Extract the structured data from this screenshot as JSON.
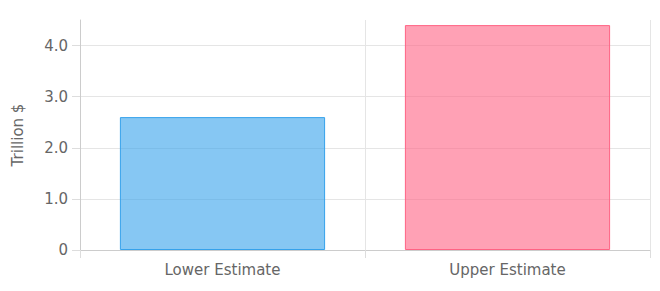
{
  "chart_data": {
    "type": "bar",
    "y_label": "Trillion $",
    "categories": [
      "Lower Estimate",
      "Upper Estimate"
    ],
    "values": [
      2.6,
      4.4
    ],
    "colors": [
      "#36a2eb",
      "#ff6384"
    ],
    "ylim": [
      0,
      4.5
    ],
    "yticks": [
      0,
      {
        "value": 1,
        "label": "1.0"
      },
      {
        "value": 2,
        "label": "2.0"
      },
      {
        "value": 3,
        "label": "3.0"
      },
      {
        "value": 4,
        "label": "4.0"
      }
    ],
    "grid": true
  }
}
